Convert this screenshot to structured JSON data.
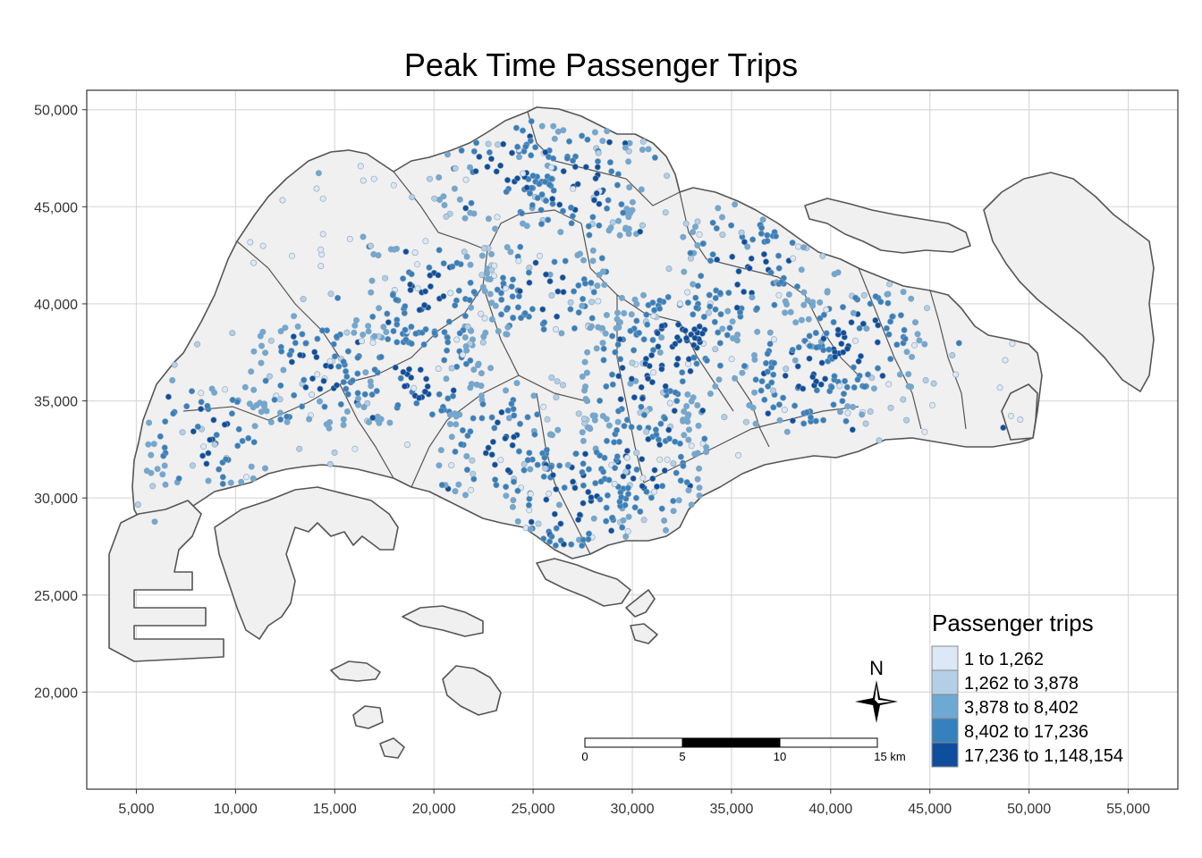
{
  "title": "Peak Time Passenger Trips",
  "colors": {
    "land": "#f0f0f0",
    "boundary": "#555555",
    "grid": "#d9d9d9",
    "frame": "#333333"
  },
  "axes": {
    "x_ticks": [
      "5,000",
      "10,000",
      "15,000",
      "20,000",
      "25,000",
      "30,000",
      "35,000",
      "40,000",
      "45,000",
      "50,000",
      "55,000"
    ],
    "y_ticks": [
      "20,000",
      "25,000",
      "30,000",
      "35,000",
      "40,000",
      "45,000",
      "50,000"
    ],
    "xlim": [
      2500,
      57500
    ],
    "ylim": [
      15000,
      51000
    ]
  },
  "legend": {
    "title": "Passenger trips",
    "classes": [
      {
        "label": "1 to 1,262",
        "color": "#dce8f5"
      },
      {
        "label": "1,262 to 3,878",
        "color": "#b3cfe6"
      },
      {
        "label": "3,878 to 8,402",
        "color": "#6ea9d3"
      },
      {
        "label": "8,402 to 17,236",
        "color": "#3580bd"
      },
      {
        "label": "17,236 to 1,148,154",
        "color": "#0f4e9c"
      }
    ]
  },
  "north_arrow": {
    "label": "N"
  },
  "scale_bar": {
    "labels": [
      "0",
      "5",
      "10",
      "15 km"
    ]
  },
  "chart_data": {
    "type": "map",
    "title": "Peak Time Passenger Trips",
    "legend_title": "Passenger trips",
    "classes": [
      "1 to 1,262",
      "1,262 to 3,878",
      "3,878 to 8,402",
      "8,402 to 17,236",
      "17,236 to 1,148,154"
    ],
    "x_range": [
      2500,
      57500
    ],
    "y_range": [
      15000,
      51000
    ],
    "grid": true,
    "legend_position": "bottom-right"
  }
}
